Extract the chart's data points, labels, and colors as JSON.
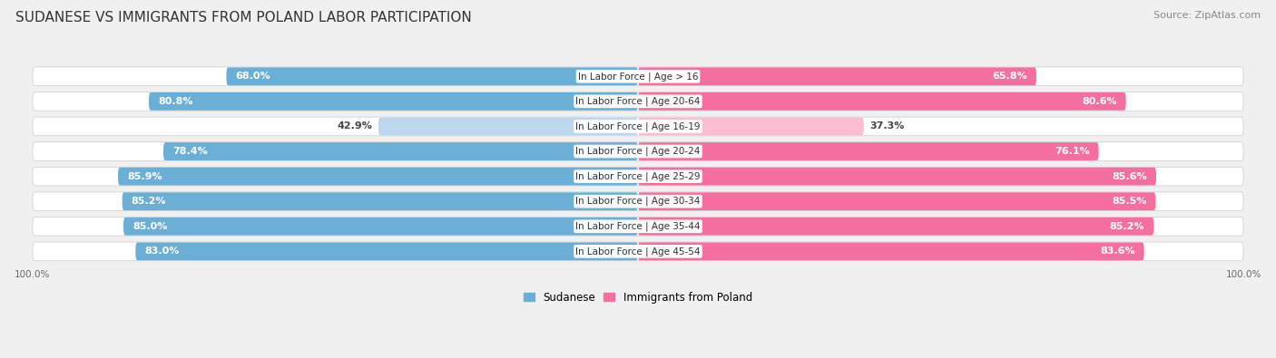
{
  "title": "SUDANESE VS IMMIGRANTS FROM POLAND LABOR PARTICIPATION",
  "source": "Source: ZipAtlas.com",
  "categories": [
    "In Labor Force | Age > 16",
    "In Labor Force | Age 20-64",
    "In Labor Force | Age 16-19",
    "In Labor Force | Age 20-24",
    "In Labor Force | Age 25-29",
    "In Labor Force | Age 30-34",
    "In Labor Force | Age 35-44",
    "In Labor Force | Age 45-54"
  ],
  "sudanese_values": [
    68.0,
    80.8,
    42.9,
    78.4,
    85.9,
    85.2,
    85.0,
    83.0
  ],
  "poland_values": [
    65.8,
    80.6,
    37.3,
    76.1,
    85.6,
    85.5,
    85.2,
    83.6
  ],
  "sudanese_color": "#6BAED6",
  "sudanese_color_light": "#BDD7EE",
  "poland_color": "#F46FA0",
  "poland_color_light": "#FABDD2",
  "background_color": "#f0f0f0",
  "row_bg_color": "#ffffff",
  "title_fontsize": 11,
  "source_fontsize": 8,
  "bar_label_fontsize": 8,
  "category_fontsize": 7.5,
  "legend_fontsize": 8.5,
  "axis_label_fontsize": 7.5,
  "max_value": 100.0
}
